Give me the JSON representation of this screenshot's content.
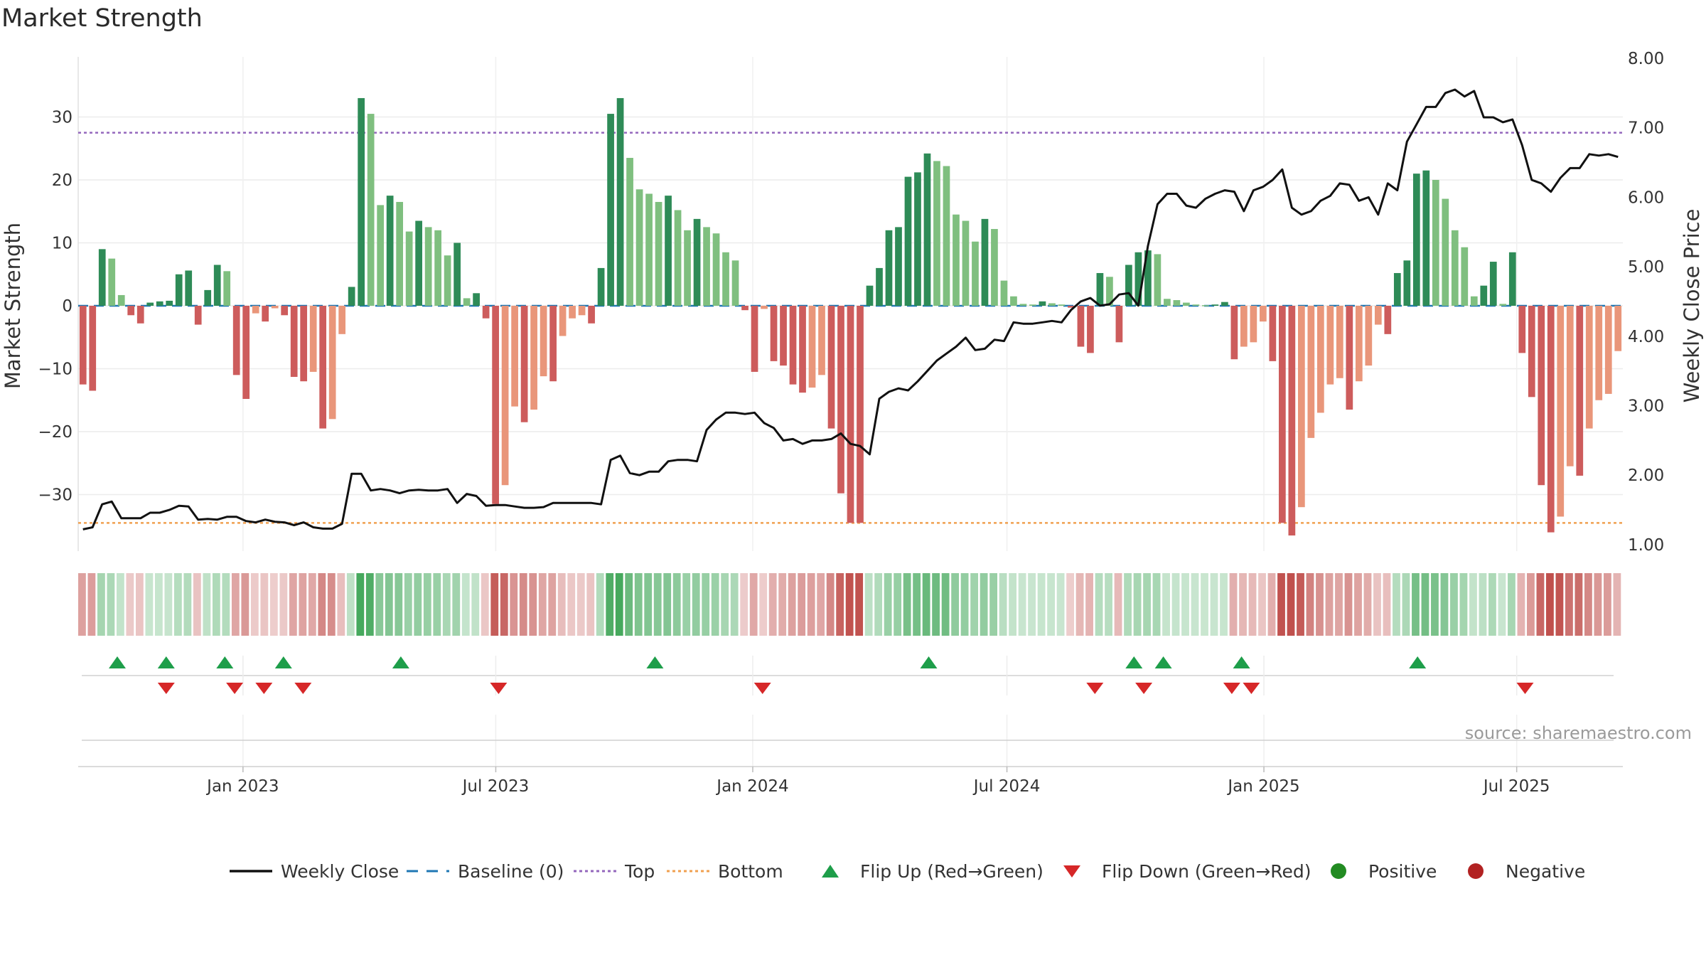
{
  "title": "Market Strength",
  "source": "source: sharemaestro.com",
  "chart_data": {
    "type": "bar",
    "title": "Market Strength",
    "ylabel": "Market Strength",
    "y2label": "Weekly Close Price",
    "ylim": [
      -39,
      39
    ],
    "y2lim": [
      0.7,
      8.0
    ],
    "yticks": [
      30,
      20,
      10,
      0,
      -10,
      -20,
      -30
    ],
    "ytick_labels": [
      "30",
      "20",
      "10",
      "0",
      "−10",
      "−20",
      "−30"
    ],
    "y2ticks": [
      8,
      7,
      6,
      5,
      4,
      3,
      2,
      1
    ],
    "y2tick_labels": [
      "8.00",
      "7.00",
      "6.00",
      "5.00",
      "4.00",
      "3.00",
      "2.00",
      "1.00"
    ],
    "x_start": "2022-09-05",
    "x_end": "2025-09-15",
    "xtick_dates": [
      "2023-01-01",
      "2023-07-01",
      "2024-01-01",
      "2024-07-01",
      "2025-01-01",
      "2025-07-01"
    ],
    "xtick_labels": [
      "Jan 2023",
      "Jul 2023",
      "Jan 2024",
      "Jul 2024",
      "Jan 2025",
      "Jul 2025"
    ],
    "top_level": 27.5,
    "bottom_level": -34.5,
    "baseline": 0,
    "grid": true,
    "legend_position": "bottom-center",
    "colors": {
      "pos_strong": "#2e8b57",
      "pos_light": "#7fbf7f",
      "neg_strong": "#cd5c5c",
      "neg_light": "#e9967a",
      "price": "#111111",
      "baseline": "#1f77b4",
      "top": "#9467bd",
      "bottom": "#f0a050",
      "flip_up": "#1e9e4a",
      "flip_down": "#d62728",
      "positive": "#228b22",
      "negative": "#b22222"
    },
    "strength": [
      -12.5,
      -13.5,
      9,
      7.5,
      1.7,
      -1.5,
      -2.8,
      0.5,
      0.7,
      0.8,
      5,
      5.6,
      -3,
      2.5,
      6.5,
      5.5,
      -11,
      -14.8,
      -1.2,
      -2.5,
      -0.4,
      -1.5,
      -11.3,
      -12,
      -10.5,
      -19.5,
      -18,
      -4.5,
      3,
      33,
      30.5,
      16,
      17.5,
      16.5,
      11.8,
      13.5,
      12.5,
      12,
      8,
      10,
      1.2,
      2,
      -2,
      -31.5,
      -28.5,
      -16,
      -18.5,
      -16.5,
      -11.2,
      -12,
      -4.8,
      -2,
      -1.5,
      -2.8,
      6,
      30.5,
      33,
      23.5,
      18.5,
      17.8,
      16.5,
      17.5,
      15.2,
      12,
      13.8,
      12.5,
      11.5,
      8.5,
      7.2,
      -0.7,
      -10.5,
      -0.5,
      -8.8,
      -9.5,
      -12.5,
      -13.8,
      -13,
      -11,
      -19.5,
      -29.8,
      -34.5,
      -34.5,
      3.2,
      6,
      12,
      12.5,
      20.5,
      21.2,
      24.2,
      23,
      22.2,
      14.5,
      13.5,
      10.2,
      13.8,
      12.2,
      4,
      1.5,
      0.3,
      0.2,
      0.7,
      0.4,
      0.2,
      -0.3,
      -6.5,
      -7.5,
      5.2,
      4.6,
      -5.8,
      6.5,
      8.5,
      8.8,
      8.2,
      1.1,
      0.9,
      0.5,
      0.2,
      0.1,
      0.2,
      0.6,
      -8.5,
      -6.5,
      -5.8,
      -2.5,
      -8.8,
      -34.5,
      -36.5,
      -32,
      -21,
      -17,
      -12.5,
      -11.5,
      -16.5,
      -12,
      -9.5,
      -3,
      -4.5,
      5.2,
      7.2,
      21,
      21.5,
      20,
      17,
      12,
      9.3,
      1.5,
      3.2,
      7,
      0.3,
      8.5,
      -7.5,
      -14.5,
      -28.5,
      -36,
      -33.5,
      -25.5,
      -27,
      -19.5,
      -15,
      -14,
      -7.2
    ],
    "price": [
      1.22,
      1.25,
      1.58,
      1.62,
      1.38,
      1.38,
      1.38,
      1.46,
      1.46,
      1.5,
      1.56,
      1.55,
      1.36,
      1.37,
      1.36,
      1.4,
      1.4,
      1.34,
      1.32,
      1.36,
      1.33,
      1.32,
      1.28,
      1.32,
      1.25,
      1.23,
      1.23,
      1.3,
      2.02,
      2.02,
      1.78,
      1.8,
      1.78,
      1.74,
      1.78,
      1.79,
      1.78,
      1.78,
      1.8,
      1.6,
      1.73,
      1.7,
      1.56,
      1.57,
      1.57,
      1.55,
      1.53,
      1.53,
      1.54,
      1.6,
      1.6,
      1.6,
      1.6,
      1.6,
      1.58,
      2.22,
      2.28,
      2.03,
      2,
      2.05,
      2.05,
      2.2,
      2.22,
      2.22,
      2.2,
      2.65,
      2.8,
      2.9,
      2.9,
      2.88,
      2.9,
      2.75,
      2.68,
      2.5,
      2.52,
      2.45,
      2.5,
      2.5,
      2.52,
      2.6,
      2.45,
      2.42,
      2.3,
      3.1,
      3.2,
      3.25,
      3.22,
      3.35,
      3.5,
      3.65,
      3.75,
      3.85,
      3.98,
      3.8,
      3.82,
      3.95,
      3.93,
      4.2,
      4.18,
      4.18,
      4.2,
      4.22,
      4.2,
      4.38,
      4.5,
      4.55,
      4.44,
      4.46,
      4.6,
      4.62,
      4.44,
      5.3,
      5.9,
      6.05,
      6.05,
      5.88,
      5.85,
      5.98,
      6.05,
      6.1,
      6.08,
      5.8,
      6.1,
      6.15,
      6.25,
      6.4,
      5.85,
      5.75,
      5.8,
      5.95,
      6.02,
      6.2,
      6.18,
      5.95,
      6,
      5.75,
      6.2,
      6.1,
      6.8,
      7.05,
      7.3,
      7.3,
      7.5,
      7.55,
      7.45,
      7.53,
      7.15,
      7.15,
      7.08,
      7.12,
      6.75,
      6.25,
      6.2,
      6.08,
      6.28,
      6.42,
      6.42,
      6.62,
      6.6,
      6.62,
      6.58
    ],
    "flip_up_dates": [
      "2022-10-03",
      "2022-11-07",
      "2022-12-19",
      "2023-01-30",
      "2023-04-24",
      "2023-10-23",
      "2024-05-06",
      "2024-09-30",
      "2024-10-21",
      "2024-12-16",
      "2025-04-21"
    ],
    "flip_down_dates": [
      "2022-11-07",
      "2022-12-26",
      "2023-01-16",
      "2023-02-13",
      "2023-07-03",
      "2024-01-08",
      "2024-09-02",
      "2024-10-07",
      "2024-12-09",
      "2024-12-23",
      "2025-07-07"
    ],
    "legend": [
      {
        "label": "Weekly Close",
        "marker": "line",
        "color": "#111111"
      },
      {
        "label": "Baseline (0)",
        "marker": "dash",
        "color": "#1f77b4"
      },
      {
        "label": "Top",
        "marker": "dot",
        "color": "#9467bd"
      },
      {
        "label": "Bottom",
        "marker": "dot",
        "color": "#f0a050"
      },
      {
        "label": "Flip Up (Red→Green)",
        "marker": "tri-up",
        "color": "#1e9e4a"
      },
      {
        "label": "Flip Down (Green→Red)",
        "marker": "tri-down",
        "color": "#d62728"
      },
      {
        "label": "Positive",
        "marker": "circle",
        "color": "#228b22"
      },
      {
        "label": "Negative",
        "marker": "circle",
        "color": "#b22222"
      }
    ]
  }
}
